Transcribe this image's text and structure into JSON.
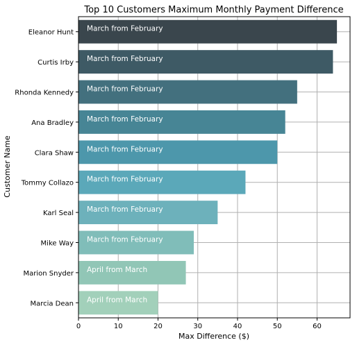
{
  "chart_data": {
    "type": "bar",
    "orientation": "horizontal",
    "title": "Top 10 Customers Maximum Monthly Payment Difference",
    "xlabel": "Max Difference ($)",
    "ylabel": "Customer Name",
    "xlim": [
      0,
      68.3
    ],
    "xticks": [
      0,
      10,
      20,
      30,
      40,
      50,
      60
    ],
    "grid": true,
    "categories": [
      "Eleanor Hunt",
      "Curtis Irby",
      "Rhonda Kennedy",
      "Ana Bradley",
      "Clara Shaw",
      "Tommy Collazo",
      "Karl Seal",
      "Mike Way",
      "Marion Snyder",
      "Marcia Dean"
    ],
    "values": [
      65,
      64,
      55,
      52,
      50,
      42,
      35,
      29,
      27,
      20
    ],
    "bar_labels": [
      "March from February",
      "March from February",
      "March from February",
      "March from February",
      "March from February",
      "March from February",
      "March from February",
      "March from February",
      "April from March",
      "April from March"
    ],
    "colors": [
      "#3a464d",
      "#3e5a65",
      "#43707e",
      "#478595",
      "#4d97ab",
      "#5ba8b9",
      "#6db1bb",
      "#80bdb9",
      "#91c6b6",
      "#a2d0ba"
    ]
  }
}
